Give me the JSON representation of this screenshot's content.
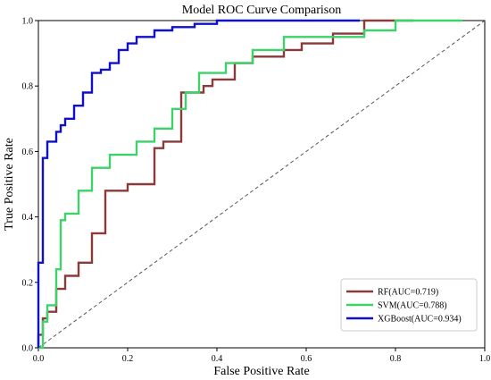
{
  "chart_data": {
    "type": "line",
    "title": "Model ROC Curve Comparison",
    "xlabel": "False Positive Rate",
    "ylabel": "True Positive Rate",
    "xlim": [
      0.0,
      1.0
    ],
    "ylim": [
      0.0,
      1.0
    ],
    "xticks": [
      "0.0",
      "0.2",
      "0.4",
      "0.6",
      "0.8",
      "1.0"
    ],
    "yticks": [
      "0.0",
      "0.2",
      "0.4",
      "0.6",
      "0.8",
      "1.0"
    ],
    "grid": false,
    "legend_position": "lower-right",
    "diagonal": {
      "x": [
        0,
        1
      ],
      "y": [
        0,
        1
      ],
      "style": "dashed",
      "color": "#555555"
    },
    "series": [
      {
        "name": "RF(AUC=0.719)",
        "color": "#8b3a3a",
        "x": [
          0.0,
          0.0,
          0.01,
          0.01,
          0.02,
          0.02,
          0.04,
          0.04,
          0.06,
          0.06,
          0.09,
          0.09,
          0.12,
          0.12,
          0.15,
          0.15,
          0.2,
          0.2,
          0.26,
          0.26,
          0.28,
          0.28,
          0.32,
          0.32,
          0.37,
          0.37,
          0.39,
          0.39,
          0.44,
          0.44,
          0.48,
          0.48,
          0.55,
          0.55,
          0.59,
          0.59,
          0.66,
          0.66,
          0.73,
          0.73,
          0.84
        ],
        "y": [
          0.0,
          0.04,
          0.04,
          0.09,
          0.09,
          0.11,
          0.11,
          0.18,
          0.18,
          0.22,
          0.22,
          0.26,
          0.26,
          0.35,
          0.35,
          0.48,
          0.48,
          0.5,
          0.5,
          0.61,
          0.61,
          0.63,
          0.63,
          0.78,
          0.78,
          0.8,
          0.8,
          0.82,
          0.82,
          0.87,
          0.87,
          0.89,
          0.89,
          0.91,
          0.91,
          0.93,
          0.93,
          0.96,
          0.96,
          1.0,
          1.0
        ]
      },
      {
        "name": "SVM(AUC=0.788)",
        "color": "#3fd16a",
        "x": [
          0.0,
          0.01,
          0.01,
          0.02,
          0.02,
          0.04,
          0.04,
          0.05,
          0.05,
          0.06,
          0.06,
          0.09,
          0.09,
          0.12,
          0.12,
          0.16,
          0.16,
          0.22,
          0.22,
          0.26,
          0.26,
          0.3,
          0.3,
          0.33,
          0.33,
          0.36,
          0.36,
          0.42,
          0.42,
          0.48,
          0.48,
          0.55,
          0.55,
          0.73,
          0.73,
          0.8,
          0.8,
          0.95
        ],
        "y": [
          0.0,
          0.0,
          0.08,
          0.08,
          0.13,
          0.13,
          0.24,
          0.24,
          0.39,
          0.39,
          0.41,
          0.41,
          0.48,
          0.48,
          0.55,
          0.55,
          0.59,
          0.59,
          0.63,
          0.63,
          0.67,
          0.67,
          0.73,
          0.73,
          0.78,
          0.78,
          0.84,
          0.84,
          0.87,
          0.87,
          0.91,
          0.91,
          0.95,
          0.95,
          0.97,
          0.97,
          1.0,
          1.0
        ]
      },
      {
        "name": "XGBoost(AUC=0.934)",
        "color": "#1010c8",
        "x": [
          0.0,
          0.0,
          0.01,
          0.01,
          0.02,
          0.02,
          0.04,
          0.04,
          0.05,
          0.05,
          0.06,
          0.06,
          0.08,
          0.08,
          0.1,
          0.1,
          0.12,
          0.12,
          0.14,
          0.14,
          0.16,
          0.16,
          0.18,
          0.18,
          0.2,
          0.2,
          0.22,
          0.22,
          0.26,
          0.26,
          0.3,
          0.3,
          0.35,
          0.35,
          0.4,
          0.4,
          0.72
        ],
        "y": [
          0.0,
          0.26,
          0.26,
          0.58,
          0.58,
          0.63,
          0.63,
          0.66,
          0.66,
          0.68,
          0.68,
          0.7,
          0.7,
          0.74,
          0.74,
          0.78,
          0.78,
          0.84,
          0.84,
          0.85,
          0.85,
          0.87,
          0.87,
          0.91,
          0.91,
          0.93,
          0.93,
          0.95,
          0.95,
          0.97,
          0.97,
          0.98,
          0.98,
          0.99,
          0.99,
          1.0,
          1.0
        ]
      }
    ]
  }
}
